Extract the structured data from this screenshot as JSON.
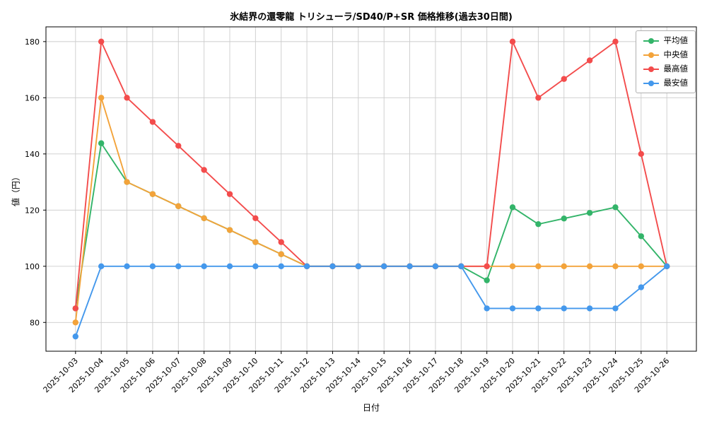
{
  "chart_data": {
    "type": "line",
    "title": "氷結界の還零龍 トリシューラ/SD40/P+SR 価格推移(過去30日間)",
    "xlabel": "日付",
    "ylabel": "値（円）",
    "grid": true,
    "legend_position": "upper right",
    "ylim": [
      69.75,
      185.25
    ],
    "yticks": [
      80,
      100,
      120,
      140,
      160,
      180
    ],
    "x": [
      "2025-10-03",
      "2025-10-04",
      "2025-10-05",
      "2025-10-06",
      "2025-10-07",
      "2025-10-08",
      "2025-10-09",
      "2025-10-10",
      "2025-10-11",
      "2025-10-12",
      "2025-10-13",
      "2025-10-14",
      "2025-10-15",
      "2025-10-16",
      "2025-10-17",
      "2025-10-18",
      "2025-10-19",
      "2025-10-20",
      "2025-10-21",
      "2025-10-22",
      "2025-10-23",
      "2025-10-24",
      "2025-10-25",
      "2025-10-26"
    ],
    "series": [
      {
        "name": "平均値",
        "color": "#33b469",
        "values": [
          85,
          143.8,
          130,
          125.7,
          121.4,
          117.1,
          112.9,
          108.6,
          104.3,
          100,
          100,
          100,
          100,
          100,
          100,
          100,
          95,
          121,
          115,
          117,
          119,
          121,
          110.7,
          100
        ]
      },
      {
        "name": "中央値",
        "color": "#f3a33a",
        "values": [
          80,
          160,
          130,
          125.7,
          121.4,
          117.1,
          112.9,
          108.6,
          104.3,
          100,
          100,
          100,
          100,
          100,
          100,
          100,
          100,
          100,
          100,
          100,
          100,
          100,
          100,
          100
        ]
      },
      {
        "name": "最高値",
        "color": "#f34c4c",
        "values": [
          85,
          180,
          160,
          151.4,
          142.9,
          134.3,
          125.7,
          117.1,
          108.6,
          100,
          100,
          100,
          100,
          100,
          100,
          100,
          100,
          180,
          160,
          166.7,
          173.3,
          180,
          140,
          100
        ]
      },
      {
        "name": "最安値",
        "color": "#4498ec",
        "values": [
          75,
          100,
          100,
          100,
          100,
          100,
          100,
          100,
          100,
          100,
          100,
          100,
          100,
          100,
          100,
          100,
          85,
          85,
          85,
          85,
          85,
          85,
          92.5,
          100
        ]
      }
    ]
  }
}
